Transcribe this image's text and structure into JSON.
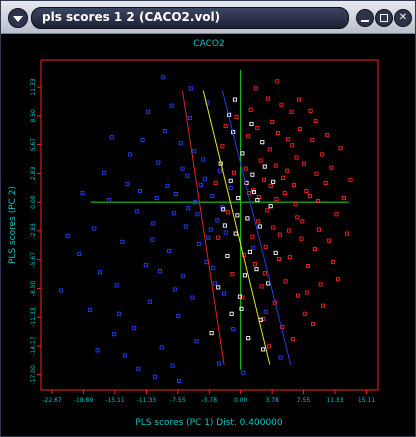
{
  "window": {
    "title": "pls scores 1 2 (CACO2.vol)",
    "menu_icon": "menu-arrow-icon",
    "controls": [
      "minimize-icon",
      "maximize-icon",
      "close-icon"
    ]
  },
  "chart_data": {
    "type": "scatter",
    "title": "CACO2",
    "xlabel": "PLS scores (PC 1)  Dist. 0.400000",
    "ylabel": "PLS scores (PC 2)",
    "xlim": [
      -24.0,
      16.5
    ],
    "ylim": [
      -18.5,
      14.0
    ],
    "x_ticks": [
      "-22.67",
      "-18.89",
      "-15.11",
      "-11.33",
      "-7.55",
      "-3.78",
      "0.00",
      "3.78",
      "7.55",
      "11.33",
      "15.11"
    ],
    "y_ticks": [
      "11.33",
      "8.50",
      "5.67",
      "2.83",
      "0.00",
      "-2.83",
      "-5.67",
      "-8.50",
      "-11.33",
      "-14.17",
      "-17.00"
    ],
    "x_tick_values": [
      -22.67,
      -18.89,
      -15.11,
      -11.33,
      -7.55,
      -3.78,
      0,
      3.78,
      7.55,
      11.33,
      15.11
    ],
    "y_tick_values": [
      11.33,
      8.5,
      5.67,
      2.83,
      0,
      -2.83,
      -5.67,
      -8.5,
      -11.33,
      -14.17,
      -17.0
    ],
    "grid": false,
    "colors": {
      "frame": "#ff2020",
      "axes_cross": "#20e020",
      "text": "#00c8c8",
      "background": "#000000"
    },
    "cross": {
      "h_y": 0.0,
      "h_x": [
        -18.0,
        13.0
      ],
      "v_x": 0.0,
      "v_y": [
        -16.5,
        13.0
      ]
    },
    "lines": [
      {
        "color": "#e02020",
        "from": [
          -7.0,
          11.0
        ],
        "to": [
          -2.0,
          -16.0
        ]
      },
      {
        "color": "#e8e820",
        "from": [
          -4.5,
          11.0
        ],
        "to": [
          3.5,
          -16.0
        ]
      },
      {
        "color": "#2040e0",
        "from": [
          -2.2,
          11.0
        ],
        "to": [
          6.0,
          -16.0
        ]
      }
    ],
    "series": [
      {
        "color": "#ff2020",
        "points": [
          [
            1.5,
            1.2
          ],
          [
            3.2,
            -0.8
          ],
          [
            5.1,
            2.4
          ],
          [
            6.8,
            -1.5
          ],
          [
            2.4,
            4.1
          ],
          [
            8.3,
            0.6
          ],
          [
            4.7,
            -3.2
          ],
          [
            0.9,
            6.5
          ],
          [
            7.6,
            3.8
          ],
          [
            9.4,
            -2.7
          ],
          [
            3.8,
            7.9
          ],
          [
            5.9,
            -5.4
          ],
          [
            2.1,
            -1.9
          ],
          [
            10.2,
            1.9
          ],
          [
            6.2,
            5.6
          ],
          [
            4.3,
            0.3
          ],
          [
            8.9,
            -4.6
          ],
          [
            1.2,
            9.1
          ],
          [
            7.1,
            7.2
          ],
          [
            5.4,
            -7.8
          ],
          [
            11.5,
            -1.2
          ],
          [
            3.0,
            -4.4
          ],
          [
            9.8,
            4.7
          ],
          [
            6.6,
            -0.2
          ],
          [
            2.8,
            2.2
          ],
          [
            4.9,
            9.6
          ],
          [
            8.1,
            -6.3
          ],
          [
            1.7,
            -6.1
          ],
          [
            12.4,
            0.4
          ],
          [
            7.9,
            1.1
          ],
          [
            5.6,
            3.1
          ],
          [
            3.5,
            5.2
          ],
          [
            10.6,
            -3.8
          ],
          [
            6.9,
            -9.2
          ],
          [
            2.5,
            -8.3
          ],
          [
            9.1,
            2.8
          ],
          [
            4.1,
            -9.9
          ],
          [
            8.6,
            6.1
          ],
          [
            0.6,
            3.3
          ],
          [
            11.1,
            -5.9
          ],
          [
            5.3,
            0.9
          ],
          [
            3.9,
            -2.5
          ],
          [
            7.3,
            -3.6
          ],
          [
            6.1,
            8.9
          ],
          [
            9.6,
            -8.1
          ],
          [
            4.5,
            6.8
          ],
          [
            2.2,
            0.5
          ],
          [
            10.9,
            3.4
          ],
          [
            1.4,
            -3.4
          ],
          [
            5.8,
            -2.8
          ],
          [
            8.4,
            9.0
          ],
          [
            3.3,
            10.2
          ],
          [
            7.7,
            -11.0
          ],
          [
            12.8,
            -3.1
          ],
          [
            6.4,
            1.7
          ],
          [
            4.6,
            -5.6
          ],
          [
            9.3,
            0.1
          ],
          [
            2.7,
            -11.5
          ],
          [
            5.0,
            -12.3
          ],
          [
            8.0,
            -8.9
          ],
          [
            1.0,
            0.9
          ],
          [
            13.2,
            2.2
          ],
          [
            6.7,
            4.4
          ],
          [
            3.6,
            1.6
          ],
          [
            10.4,
            6.6
          ],
          [
            7.4,
            -1.9
          ],
          [
            4.2,
            3.6
          ],
          [
            2.0,
            7.3
          ],
          [
            9.9,
            -10.2
          ],
          [
            5.7,
            6.2
          ],
          [
            -1.5,
            -1.0
          ],
          [
            -0.8,
            2.9
          ],
          [
            -2.2,
            5.5
          ],
          [
            0.4,
            -5.2
          ],
          [
            -1.0,
            -7.1
          ],
          [
            6.3,
            -13.5
          ],
          [
            8.7,
            -12.0
          ],
          [
            11.7,
            -7.6
          ],
          [
            3.4,
            -14.2
          ],
          [
            -0.5,
            8.4
          ],
          [
            1.8,
            11.2
          ],
          [
            4.4,
            11.9
          ],
          [
            7.0,
            10.1
          ],
          [
            9.0,
            8.0
          ],
          [
            12.0,
            5.3
          ],
          [
            -3.0,
            1.9
          ],
          [
            -2.7,
            -3.5
          ],
          [
            -1.8,
            7.5
          ],
          [
            0.2,
            -9.4
          ],
          [
            2.9,
            -7.0
          ]
        ]
      },
      {
        "color": "#2040ff",
        "points": [
          [
            -5.2,
            -1.2
          ],
          [
            -7.8,
            0.8
          ],
          [
            -3.9,
            -3.5
          ],
          [
            -10.5,
            -2.1
          ],
          [
            -6.4,
            2.6
          ],
          [
            -12.1,
            1.1
          ],
          [
            -8.6,
            -4.8
          ],
          [
            -4.5,
            4.2
          ],
          [
            -14.2,
            -3.9
          ],
          [
            -9.9,
            3.9
          ],
          [
            -2.8,
            -1.8
          ],
          [
            -11.4,
            -6.2
          ],
          [
            -6.9,
            -7.3
          ],
          [
            -15.8,
            0.2
          ],
          [
            -7.2,
            5.8
          ],
          [
            -3.4,
            0.6
          ],
          [
            -13.3,
            4.7
          ],
          [
            -5.8,
            -9.4
          ],
          [
            -17.6,
            -2.6
          ],
          [
            -9.1,
            7.0
          ],
          [
            -4.1,
            -5.9
          ],
          [
            -10.9,
            -9.8
          ],
          [
            -8.0,
            -1.1
          ],
          [
            -19.4,
            -5.1
          ],
          [
            -6.1,
            8.3
          ],
          [
            -12.8,
            -12.4
          ],
          [
            -14.9,
            -8.2
          ],
          [
            -2.5,
            3.1
          ],
          [
            -7.5,
            -11.2
          ],
          [
            -16.4,
            2.9
          ],
          [
            -5.5,
            0.0
          ],
          [
            -11.8,
            6.1
          ],
          [
            -9.5,
            -14.3
          ],
          [
            -3.1,
            -8.0
          ],
          [
            -20.8,
            -3.3
          ],
          [
            -8.3,
            9.5
          ],
          [
            -13.9,
            -15.1
          ],
          [
            -6.6,
            -2.4
          ],
          [
            -4.8,
            1.7
          ],
          [
            -10.1,
            0.4
          ],
          [
            -18.1,
            -10.6
          ],
          [
            -7.0,
            3.3
          ],
          [
            -15.2,
            -13.0
          ],
          [
            -5.0,
            -4.1
          ],
          [
            -12.5,
            -0.9
          ],
          [
            -8.8,
            1.6
          ],
          [
            -3.6,
            -2.7
          ],
          [
            -9.7,
            -6.8
          ],
          [
            -2.2,
            -0.5
          ],
          [
            -11.1,
            8.9
          ],
          [
            -6.3,
            -0.6
          ],
          [
            -4.3,
            2.3
          ],
          [
            -14.6,
            -11.0
          ],
          [
            -7.9,
            -8.6
          ],
          [
            -16.9,
            -6.9
          ],
          [
            -5.6,
            5.0
          ],
          [
            -10.6,
            -3.7
          ],
          [
            -3.3,
            -6.5
          ],
          [
            -13.6,
            1.8
          ],
          [
            -8.2,
            -16.1
          ],
          [
            -1.8,
            -3.0
          ],
          [
            -1.2,
            1.4
          ],
          [
            -2.0,
            -9.0
          ],
          [
            -6.0,
            11.2
          ],
          [
            -4.0,
            9.8
          ],
          [
            -9.3,
            12.3
          ],
          [
            -0.9,
            -12.5
          ],
          [
            1.5,
            -4.5
          ],
          [
            3.0,
            -10.8
          ],
          [
            4.8,
            -15.3
          ],
          [
            -12.3,
            -16.4
          ],
          [
            -17.2,
            -14.6
          ],
          [
            -21.6,
            -8.7
          ],
          [
            -19.0,
            0.9
          ],
          [
            -15.5,
            6.4
          ],
          [
            -10.3,
            -17.2
          ],
          [
            -7.4,
            -17.6
          ],
          [
            -5.3,
            -13.7
          ],
          [
            -2.6,
            -15.9
          ],
          [
            0.3,
            -16.8
          ]
        ]
      },
      {
        "color": "#ffffff",
        "points": [
          [
            -0.3,
            0.4
          ],
          [
            0.8,
            -1.6
          ],
          [
            -1.2,
            2.1
          ],
          [
            1.6,
            1.0
          ],
          [
            -0.6,
            -3.1
          ],
          [
            2.3,
            -2.4
          ],
          [
            -2.1,
            -0.7
          ],
          [
            0.2,
            4.8
          ],
          [
            1.1,
            -4.9
          ],
          [
            -1.6,
            -5.3
          ],
          [
            2.9,
            3.5
          ],
          [
            -0.9,
            6.9
          ],
          [
            0.5,
            -7.2
          ],
          [
            3.6,
            -0.4
          ],
          [
            -2.4,
            3.8
          ],
          [
            1.9,
            -6.6
          ],
          [
            -0.1,
            -9.3
          ],
          [
            2.6,
            5.9
          ],
          [
            -1.4,
            8.6
          ],
          [
            3.3,
            -8.0
          ],
          [
            0.7,
            1.9
          ],
          [
            -0.4,
            -1.3
          ],
          [
            1.4,
            2.7
          ],
          [
            -1.9,
            -2.3
          ],
          [
            2.0,
            0.2
          ],
          [
            0.1,
            -10.5
          ],
          [
            -0.7,
            10.1
          ],
          [
            3.9,
            2.0
          ],
          [
            1.3,
            7.7
          ],
          [
            -2.7,
            -8.4
          ],
          [
            2.4,
            -11.6
          ],
          [
            -3.5,
            -12.9
          ],
          [
            0.9,
            -13.4
          ],
          [
            4.2,
            -5.0
          ],
          [
            -1.1,
            -11.0
          ],
          [
            2.7,
            -14.5
          ]
        ]
      }
    ]
  }
}
